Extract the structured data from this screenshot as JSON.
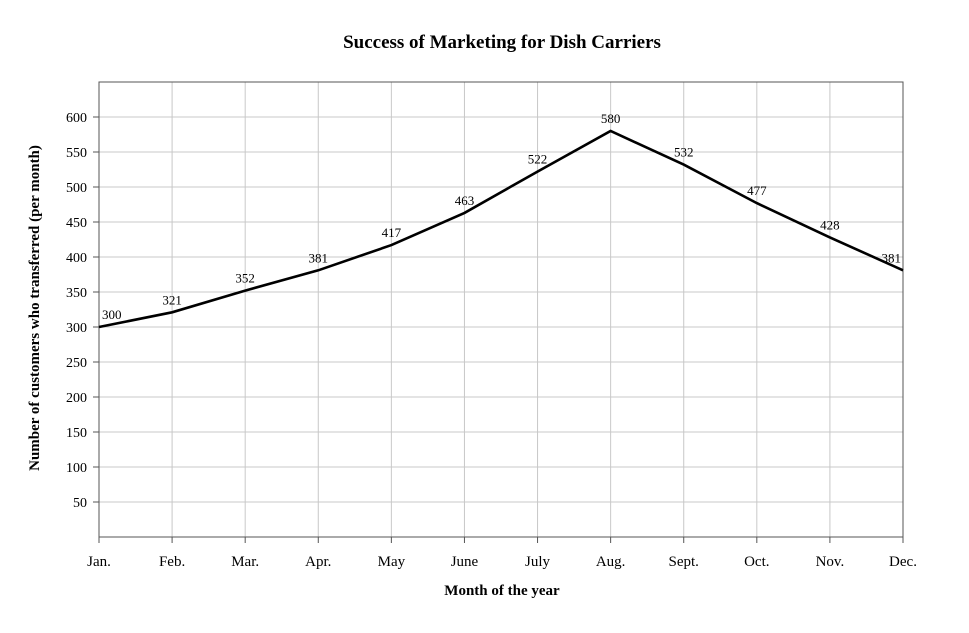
{
  "chart_data": {
    "type": "line",
    "title": "Success of Marketing for Dish Carriers",
    "xlabel": "Month of the year",
    "ylabel": "Number of customers who transferred (per month)",
    "categories": [
      "Jan.",
      "Feb.",
      "Mar.",
      "Apr.",
      "May",
      "June",
      "July",
      "Aug.",
      "Sept.",
      "Oct.",
      "Nov.",
      "Dec."
    ],
    "series": [
      {
        "values": [
          300,
          321,
          352,
          381,
          417,
          463,
          522,
          580,
          532,
          477,
          428,
          381
        ]
      }
    ],
    "ylim": [
      0,
      650
    ],
    "yticks": [
      50,
      100,
      150,
      200,
      250,
      300,
      350,
      400,
      450,
      500,
      550,
      600
    ],
    "grid": true,
    "legend": "none",
    "line_color": "#000000",
    "grid_color": "#c8c8c8"
  }
}
